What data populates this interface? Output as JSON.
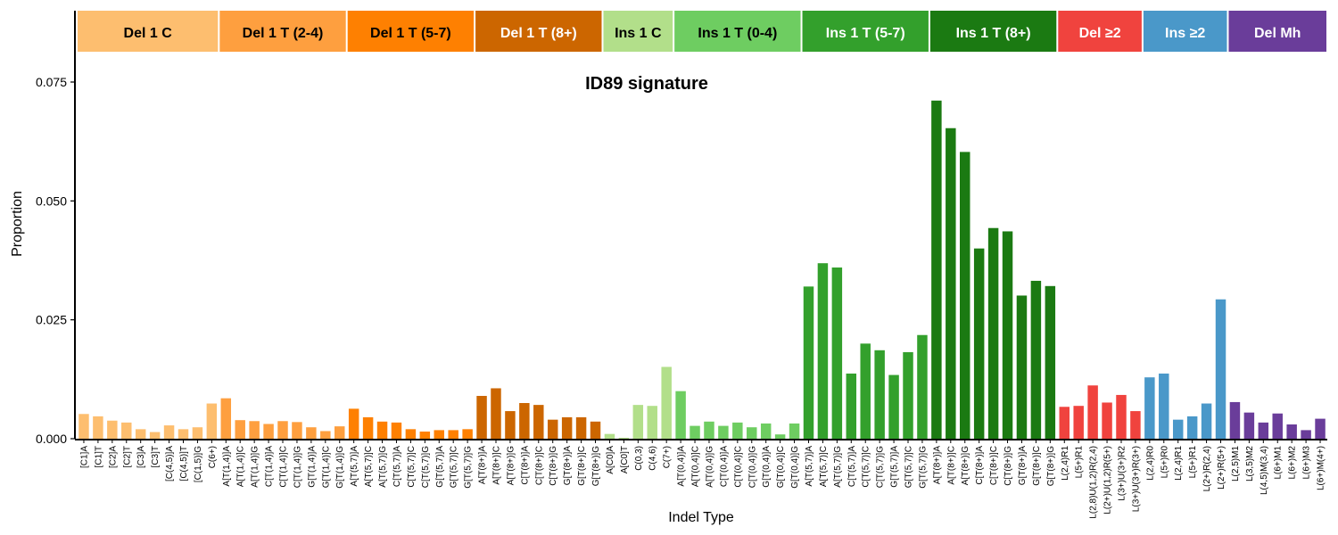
{
  "chart_data": {
    "type": "bar",
    "title": "ID89 signature",
    "xlabel": "Indel Type",
    "ylabel": "Proportion",
    "ylim": [
      0,
      0.09
    ],
    "yticks": [
      0.0,
      0.025,
      0.05,
      0.075
    ],
    "ytick_labels": [
      "0.000",
      "0.025",
      "0.050",
      "0.075"
    ],
    "grid": false,
    "legend": "none",
    "groups": [
      {
        "label": "Del 1 C",
        "count": 10,
        "color": "#fdbe6f",
        "text_color": "#000000"
      },
      {
        "label": "Del 1 T (2-4)",
        "count": 9,
        "color": "#fe9f3f",
        "text_color": "#000000"
      },
      {
        "label": "Del 1 T (5-7)",
        "count": 9,
        "color": "#fe8001",
        "text_color": "#000000"
      },
      {
        "label": "Del 1 T (8+)",
        "count": 9,
        "color": "#cc6600",
        "text_color": "#ffffff"
      },
      {
        "label": "Ins 1 C",
        "count": 5,
        "color": "#b2df8a",
        "text_color": "#000000"
      },
      {
        "label": "Ins 1 T (0-4)",
        "count": 9,
        "color": "#6ecd61",
        "text_color": "#000000"
      },
      {
        "label": "Ins 1 T (5-7)",
        "count": 9,
        "color": "#33a02c",
        "text_color": "#ffffff"
      },
      {
        "label": "Ins 1 T (8+)",
        "count": 9,
        "color": "#1b7a12",
        "text_color": "#ffffff"
      },
      {
        "label": "Del ≥2",
        "count": 6,
        "color": "#f0433e",
        "text_color": "#ffffff"
      },
      {
        "label": "Ins ≥2",
        "count": 6,
        "color": "#4a98c9",
        "text_color": "#ffffff"
      },
      {
        "label": "Del Mh",
        "count": 7,
        "color": "#6a3d9a",
        "text_color": "#ffffff"
      }
    ],
    "categories": [
      "[C1]A",
      "[C1]T",
      "[C2]A",
      "[C2]T",
      "[C3]A",
      "[C3]T",
      "[C(4,5)]A",
      "[C(4,5)]T",
      "[C(1,5)]G",
      "C(6+)",
      "A[T(1,4)]A",
      "A[T(1,4)]C",
      "A[T(1,4)]G",
      "C[T(1,4)]A",
      "C[T(1,4)]C",
      "C[T(1,4)]G",
      "G[T(1,4)]A",
      "G[T(1,4)]C",
      "G[T(1,4)]G",
      "A[T(5,7)]A",
      "A[T(5,7)]C",
      "A[T(5,7)]G",
      "C[T(5,7)]A",
      "C[T(5,7)]C",
      "C[T(5,7)]G",
      "G[T(5,7)]A",
      "G[T(5,7)]C",
      "G[T(5,7)]G",
      "A[T(8+)]A",
      "A[T(8+)]C",
      "A[T(8+)]G",
      "C[T(8+)]A",
      "C[T(8+)]C",
      "C[T(8+)]G",
      "G[T(8+)]A",
      "G[T(8+)]C",
      "G[T(8+)]G",
      "A[C0]A",
      "A[C0]T",
      "C(0,3)",
      "C(4,6)",
      "C(7+)",
      "A[T(0,4)]A",
      "A[T(0,4)]C",
      "A[T(0,4)]G",
      "C[T(0,4)]A",
      "C[T(0,4)]C",
      "C[T(0,4)]G",
      "G[T(0,4)]A",
      "G[T(0,4)]C",
      "G[T(0,4)]G",
      "A[T(5,7)]A",
      "A[T(5,7)]C",
      "A[T(5,7)]G",
      "C[T(5,7)]A",
      "C[T(5,7)]C",
      "C[T(5,7)]G",
      "G[T(5,7)]A",
      "G[T(5,7)]C",
      "G[T(5,7)]G",
      "A[T(8+)]A",
      "A[T(8+)]C",
      "A[T(8+)]G",
      "C[T(8+)]A",
      "C[T(8+)]C",
      "C[T(8+)]G",
      "G[T(8+)]A",
      "G[T(8+)]C",
      "G[T(8+)]G",
      "L(2,4)R1",
      "L(5+)R1",
      "L(2,8)U(1,2)R(2,4)",
      "L(2+)U(1,2)R(5+)",
      "L(3+)U(3+)R2",
      "L(3+)U(3+)R(3+)",
      "L(2,4)R0",
      "L(5+)R0",
      "L(2,4)R1",
      "L(5+)R1",
      "L(2+)R(2,4)",
      "L(2+)R(5+)",
      "L(2,5)M1",
      "L(3,5)M2",
      "L(4,5)M(3,4)",
      "L(6+)M1",
      "L(6+)M2",
      "L(6+)M3",
      "L(6+)M(4+)"
    ],
    "values": [
      0.0052,
      0.0047,
      0.0038,
      0.0034,
      0.002,
      0.0014,
      0.0028,
      0.002,
      0.0024,
      0.0074,
      0.0085,
      0.0039,
      0.0037,
      0.0031,
      0.0037,
      0.0035,
      0.0024,
      0.0016,
      0.0026,
      0.0063,
      0.0045,
      0.0036,
      0.0034,
      0.002,
      0.0015,
      0.0018,
      0.0018,
      0.002,
      0.009,
      0.0106,
      0.0058,
      0.0075,
      0.0071,
      0.004,
      0.0045,
      0.0045,
      0.0036,
      0.001,
      0.0002,
      0.0071,
      0.0069,
      0.0151,
      0.01,
      0.0027,
      0.0036,
      0.0027,
      0.0034,
      0.0024,
      0.0032,
      0.0009,
      0.0032,
      0.032,
      0.0369,
      0.036,
      0.0137,
      0.02,
      0.0186,
      0.0134,
      0.0182,
      0.0218,
      0.0711,
      0.0653,
      0.0603,
      0.04,
      0.0443,
      0.0436,
      0.0301,
      0.0332,
      0.0321,
      0.0067,
      0.0069,
      0.0112,
      0.0076,
      0.0092,
      0.0058,
      0.0129,
      0.0137,
      0.004,
      0.0047,
      0.0074,
      0.0293,
      0.0077,
      0.0055,
      0.0034,
      0.0053,
      0.003,
      0.0018,
      0.0042
    ]
  }
}
